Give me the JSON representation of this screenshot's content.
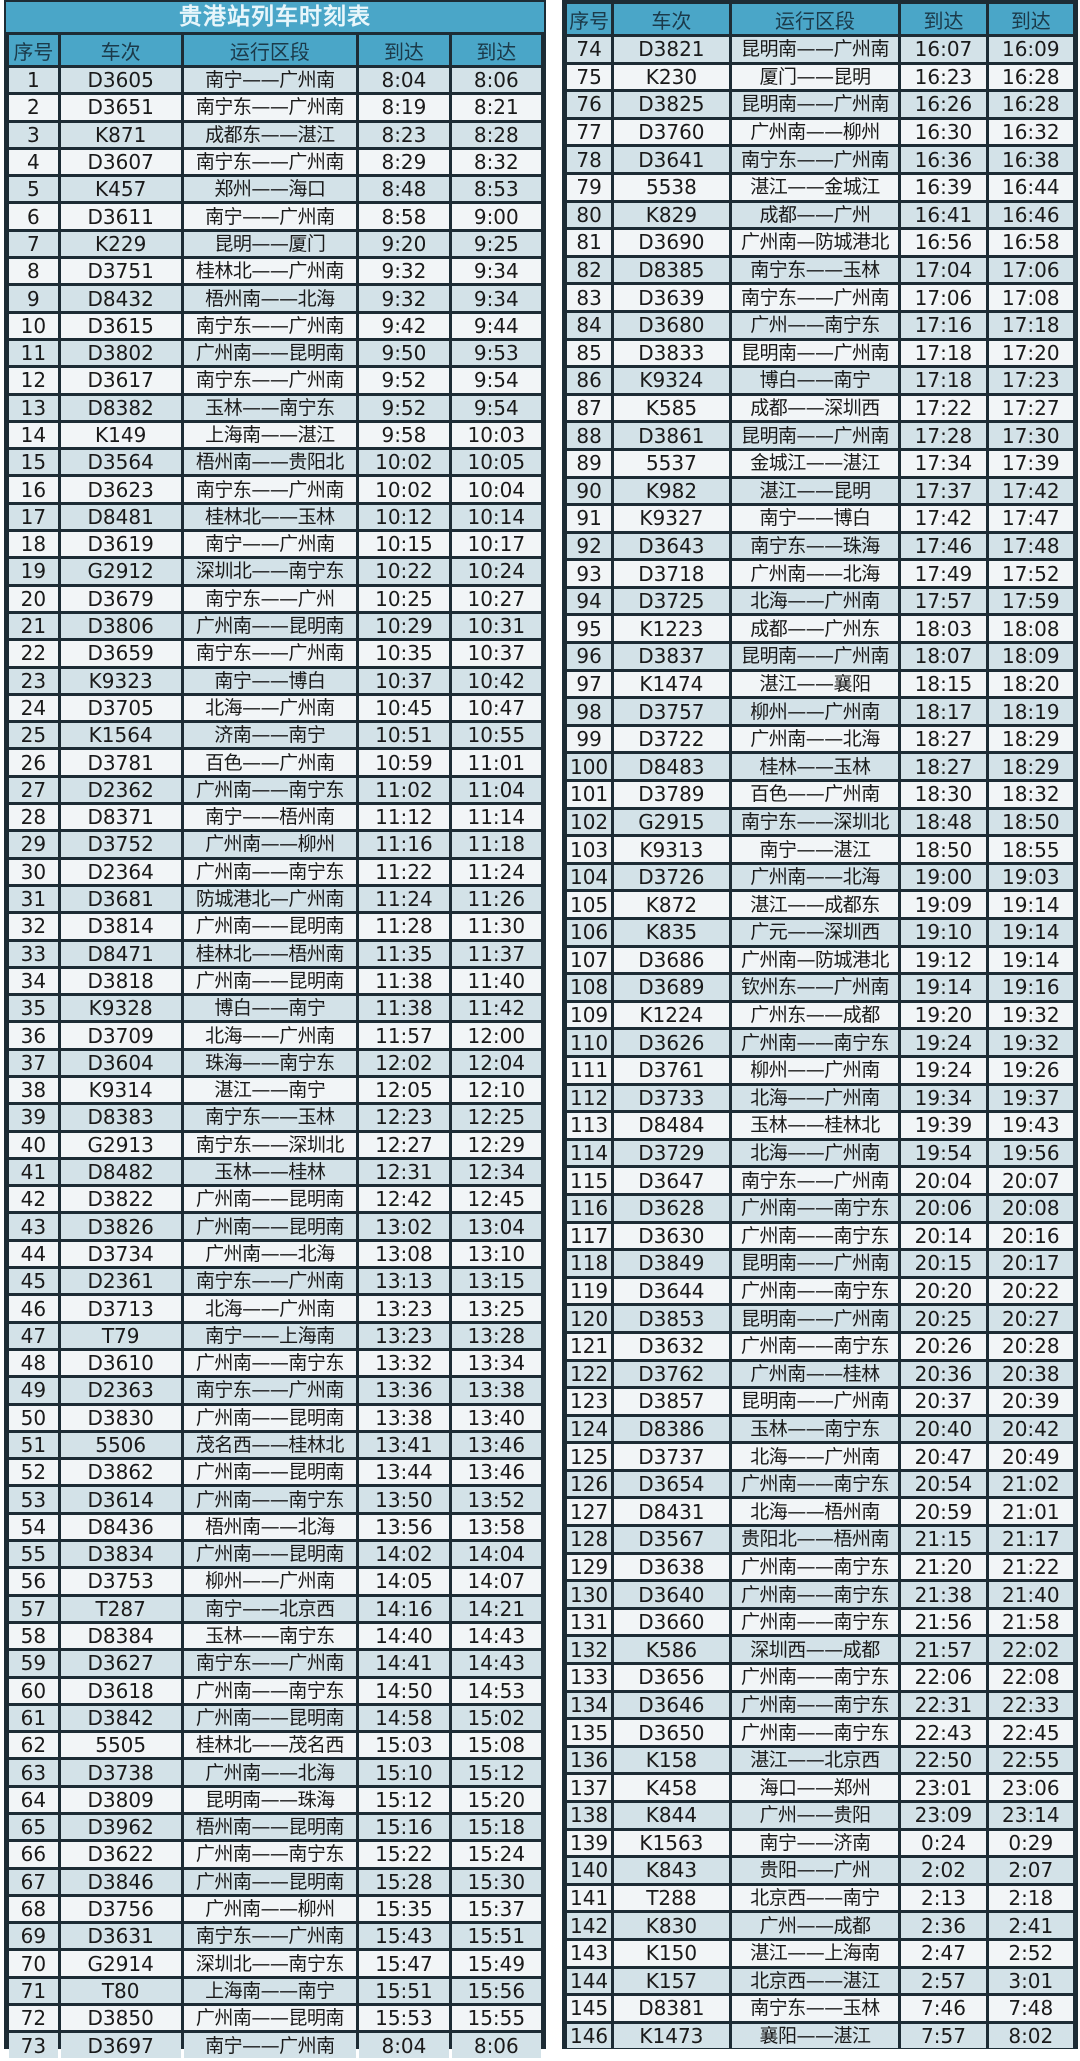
{
  "title": "贵港站列车时刻表",
  "headers": [
    "序号",
    "车次",
    "运行区段",
    "到达",
    "到达"
  ],
  "colors": {
    "header_bg": "#4aa6c8",
    "row_odd": "#d3e2e8",
    "row_even": "#f2f5f7",
    "border": "#1d2c35"
  },
  "left_rows": [
    [
      "1",
      "D3605",
      "南宁——广州南",
      "8:04",
      "8:06"
    ],
    [
      "2",
      "D3651",
      "南宁东——广州南",
      "8:19",
      "8:21"
    ],
    [
      "3",
      "K871",
      "成都东——湛江",
      "8:23",
      "8:28"
    ],
    [
      "4",
      "D3607",
      "南宁东——广州南",
      "8:29",
      "8:32"
    ],
    [
      "5",
      "K457",
      "郑州——海口",
      "8:48",
      "8:53"
    ],
    [
      "6",
      "D3611",
      "南宁——广州南",
      "8:58",
      "9:00"
    ],
    [
      "7",
      "K229",
      "昆明——厦门",
      "9:20",
      "9:25"
    ],
    [
      "8",
      "D3751",
      "桂林北——广州南",
      "9:32",
      "9:34"
    ],
    [
      "9",
      "D8432",
      "梧州南——北海",
      "9:32",
      "9:34"
    ],
    [
      "10",
      "D3615",
      "南宁东——广州南",
      "9:42",
      "9:44"
    ],
    [
      "11",
      "D3802",
      "广州南——昆明南",
      "9:50",
      "9:53"
    ],
    [
      "12",
      "D3617",
      "南宁东——广州南",
      "9:52",
      "9:54"
    ],
    [
      "13",
      "D8382",
      "玉林——南宁东",
      "9:52",
      "9:54"
    ],
    [
      "14",
      "K149",
      "上海南——湛江",
      "9:58",
      "10:03"
    ],
    [
      "15",
      "D3564",
      "梧州南——贵阳北",
      "10:02",
      "10:05"
    ],
    [
      "16",
      "D3623",
      "南宁东——广州南",
      "10:02",
      "10:04"
    ],
    [
      "17",
      "D8481",
      "桂林北——玉林",
      "10:12",
      "10:14"
    ],
    [
      "18",
      "D3619",
      "南宁——广州南",
      "10:15",
      "10:17"
    ],
    [
      "19",
      "G2912",
      "深圳北——南宁东",
      "10:22",
      "10:24"
    ],
    [
      "20",
      "D3679",
      "南宁东——广州",
      "10:25",
      "10:27"
    ],
    [
      "21",
      "D3806",
      "广州南——昆明南",
      "10:29",
      "10:31"
    ],
    [
      "22",
      "D3659",
      "南宁东——广州南",
      "10:35",
      "10:37"
    ],
    [
      "23",
      "K9323",
      "南宁——博白",
      "10:37",
      "10:42"
    ],
    [
      "24",
      "D3705",
      "北海——广州南",
      "10:45",
      "10:47"
    ],
    [
      "25",
      "K1564",
      "济南——南宁",
      "10:51",
      "10:55"
    ],
    [
      "26",
      "D3781",
      "百色——广州南",
      "10:59",
      "11:01"
    ],
    [
      "27",
      "D2362",
      "广州南——南宁东",
      "11:02",
      "11:04"
    ],
    [
      "28",
      "D8371",
      "南宁——梧州南",
      "11:12",
      "11:14"
    ],
    [
      "29",
      "D3752",
      "广州南——柳州",
      "11:16",
      "11:18"
    ],
    [
      "30",
      "D2364",
      "广州南——南宁东",
      "11:22",
      "11:24"
    ],
    [
      "31",
      "D3681",
      "防城港北—广州南",
      "11:24",
      "11:26"
    ],
    [
      "32",
      "D3814",
      "广州南——昆明南",
      "11:28",
      "11:30"
    ],
    [
      "33",
      "D8471",
      "桂林北——梧州南",
      "11:35",
      "11:37"
    ],
    [
      "34",
      "D3818",
      "广州南——昆明南",
      "11:38",
      "11:40"
    ],
    [
      "35",
      "K9328",
      "博白——南宁",
      "11:38",
      "11:42"
    ],
    [
      "36",
      "D3709",
      "北海——广州南",
      "11:57",
      "12:00"
    ],
    [
      "37",
      "D3604",
      "珠海——南宁东",
      "12:02",
      "12:04"
    ],
    [
      "38",
      "K9314",
      "湛江——南宁",
      "12:05",
      "12:10"
    ],
    [
      "39",
      "D8383",
      "南宁东——玉林",
      "12:23",
      "12:25"
    ],
    [
      "40",
      "G2913",
      "南宁东——深圳北",
      "12:27",
      "12:29"
    ],
    [
      "41",
      "D8482",
      "玉林——桂林",
      "12:31",
      "12:34"
    ],
    [
      "42",
      "D3822",
      "广州南——昆明南",
      "12:42",
      "12:45"
    ],
    [
      "43",
      "D3826",
      "广州南——昆明南",
      "13:02",
      "13:04"
    ],
    [
      "44",
      "D3734",
      "广州南——北海",
      "13:08",
      "13:10"
    ],
    [
      "45",
      "D2361",
      "南宁东——广州南",
      "13:13",
      "13:15"
    ],
    [
      "46",
      "D3713",
      "北海——广州南",
      "13:23",
      "13:25"
    ],
    [
      "47",
      "T79",
      "南宁——上海南",
      "13:23",
      "13:28"
    ],
    [
      "48",
      "D3610",
      "广州南——南宁东",
      "13:32",
      "13:34"
    ],
    [
      "49",
      "D2363",
      "南宁东——广州南",
      "13:36",
      "13:38"
    ],
    [
      "50",
      "D3830",
      "广州南——昆明南",
      "13:38",
      "13:40"
    ],
    [
      "51",
      "5506",
      "茂名西——桂林北",
      "13:41",
      "13:46"
    ],
    [
      "52",
      "D3862",
      "广州南——昆明南",
      "13:44",
      "13:46"
    ],
    [
      "53",
      "D3614",
      "广州南——南宁东",
      "13:50",
      "13:52"
    ],
    [
      "54",
      "D8436",
      "梧州南——北海",
      "13:56",
      "13:58"
    ],
    [
      "55",
      "D3834",
      "广州南——昆明南",
      "14:02",
      "14:04"
    ],
    [
      "56",
      "D3753",
      "柳州——广州南",
      "14:05",
      "14:07"
    ],
    [
      "57",
      "T287",
      "南宁——北京西",
      "14:16",
      "14:21"
    ],
    [
      "58",
      "D8384",
      "玉林——南宁东",
      "14:40",
      "14:43"
    ],
    [
      "59",
      "D3627",
      "南宁东——广州南",
      "14:41",
      "14:43"
    ],
    [
      "60",
      "D3618",
      "广州南——南宁东",
      "14:50",
      "14:53"
    ],
    [
      "61",
      "D3842",
      "广州南——昆明南",
      "14:58",
      "15:02"
    ],
    [
      "62",
      "5505",
      "桂林北——茂名西",
      "15:03",
      "15:08"
    ],
    [
      "63",
      "D3738",
      "广州南——北海",
      "15:10",
      "15:12"
    ],
    [
      "64",
      "D3809",
      "昆明南——珠海",
      "15:12",
      "15:20"
    ],
    [
      "65",
      "D3962",
      "梧州南——昆明南",
      "15:16",
      "15:18"
    ],
    [
      "66",
      "D3622",
      "广州南——南宁东",
      "15:22",
      "15:24"
    ],
    [
      "67",
      "D3846",
      "广州南——昆明南",
      "15:28",
      "15:30"
    ],
    [
      "68",
      "D3756",
      "广州南——柳州",
      "15:35",
      "15:37"
    ],
    [
      "69",
      "D3631",
      "南宁东——广州南",
      "15:43",
      "15:51"
    ],
    [
      "70",
      "G2914",
      "深圳北——南宁东",
      "15:47",
      "15:49"
    ],
    [
      "71",
      "T80",
      "上海南——南宁",
      "15:51",
      "15:56"
    ],
    [
      "72",
      "D3850",
      "广州南——昆明南",
      "15:53",
      "15:55"
    ],
    [
      "73",
      "D3697",
      "南宁——广州南",
      "8:04",
      "8:06"
    ]
  ],
  "right_rows": [
    [
      "74",
      "D3821",
      "昆明南——广州南",
      "16:07",
      "16:09"
    ],
    [
      "75",
      "K230",
      "厦门——昆明",
      "16:23",
      "16:28"
    ],
    [
      "76",
      "D3825",
      "昆明南——广州南",
      "16:26",
      "16:28"
    ],
    [
      "77",
      "D3760",
      "广州南——柳州",
      "16:30",
      "16:32"
    ],
    [
      "78",
      "D3641",
      "南宁东——广州南",
      "16:36",
      "16:38"
    ],
    [
      "79",
      "5538",
      "湛江——金城江",
      "16:39",
      "16:44"
    ],
    [
      "80",
      "K829",
      "成都——广州",
      "16:41",
      "16:46"
    ],
    [
      "81",
      "D3690",
      "广州南—防城港北",
      "16:56",
      "16:58"
    ],
    [
      "82",
      "D8385",
      "南宁东——玉林",
      "17:04",
      "17:06"
    ],
    [
      "83",
      "D3639",
      "南宁东——广州南",
      "17:06",
      "17:08"
    ],
    [
      "84",
      "D3680",
      "广州——南宁东",
      "17:16",
      "17:18"
    ],
    [
      "85",
      "D3833",
      "昆明南——广州南",
      "17:18",
      "17:20"
    ],
    [
      "86",
      "K9324",
      "博白——南宁",
      "17:18",
      "17:23"
    ],
    [
      "87",
      "K585",
      "成都——深圳西",
      "17:22",
      "17:27"
    ],
    [
      "88",
      "D3861",
      "昆明南——广州南",
      "17:28",
      "17:30"
    ],
    [
      "89",
      "5537",
      "金城江——湛江",
      "17:34",
      "17:39"
    ],
    [
      "90",
      "K982",
      "湛江——昆明",
      "17:37",
      "17:42"
    ],
    [
      "91",
      "K9327",
      "南宁——博白",
      "17:42",
      "17:47"
    ],
    [
      "92",
      "D3643",
      "南宁东——珠海",
      "17:46",
      "17:48"
    ],
    [
      "93",
      "D3718",
      "广州南——北海",
      "17:49",
      "17:52"
    ],
    [
      "94",
      "D3725",
      "北海——广州南",
      "17:57",
      "17:59"
    ],
    [
      "95",
      "K1223",
      "成都——广州东",
      "18:03",
      "18:08"
    ],
    [
      "96",
      "D3837",
      "昆明南——广州南",
      "18:07",
      "18:09"
    ],
    [
      "97",
      "K1474",
      "湛江——襄阳",
      "18:15",
      "18:20"
    ],
    [
      "98",
      "D3757",
      "柳州——广州南",
      "18:17",
      "18:19"
    ],
    [
      "99",
      "D3722",
      "广州南——北海",
      "18:27",
      "18:29"
    ],
    [
      "100",
      "D8483",
      "桂林——玉林",
      "18:27",
      "18:29"
    ],
    [
      "101",
      "D3789",
      "百色——广州南",
      "18:30",
      "18:32"
    ],
    [
      "102",
      "G2915",
      "南宁东——深圳北",
      "18:48",
      "18:50"
    ],
    [
      "103",
      "K9313",
      "南宁——湛江",
      "18:50",
      "18:55"
    ],
    [
      "104",
      "D3726",
      "广州南——北海",
      "19:00",
      "19:03"
    ],
    [
      "105",
      "K872",
      "湛江——成都东",
      "19:09",
      "19:14"
    ],
    [
      "106",
      "K835",
      "广元——深圳西",
      "19:10",
      "19:14"
    ],
    [
      "107",
      "D3686",
      "广州南—防城港北",
      "19:12",
      "19:14"
    ],
    [
      "108",
      "D3689",
      "钦州东——广州南",
      "19:14",
      "19:16"
    ],
    [
      "109",
      "K1224",
      "广州东——成都",
      "19:20",
      "19:32"
    ],
    [
      "110",
      "D3626",
      "广州南——南宁东",
      "19:24",
      "19:32"
    ],
    [
      "111",
      "D3761",
      "柳州——广州南",
      "19:24",
      "19:26"
    ],
    [
      "112",
      "D3733",
      "北海——广州南",
      "19:34",
      "19:37"
    ],
    [
      "113",
      "D8484",
      "玉林——桂林北",
      "19:39",
      "19:43"
    ],
    [
      "114",
      "D3729",
      "北海——广州南",
      "19:54",
      "19:56"
    ],
    [
      "115",
      "D3647",
      "南宁东——广州南",
      "20:04",
      "20:07"
    ],
    [
      "116",
      "D3628",
      "广州南——南宁东",
      "20:06",
      "20:08"
    ],
    [
      "117",
      "D3630",
      "广州南——南宁东",
      "20:14",
      "20:16"
    ],
    [
      "118",
      "D3849",
      "昆明南——广州南",
      "20:15",
      "20:17"
    ],
    [
      "119",
      "D3644",
      "广州南——南宁东",
      "20:20",
      "20:22"
    ],
    [
      "120",
      "D3853",
      "昆明南——广州南",
      "20:25",
      "20:27"
    ],
    [
      "121",
      "D3632",
      "广州南——南宁东",
      "20:26",
      "20:28"
    ],
    [
      "122",
      "D3762",
      "广州南——桂林",
      "20:36",
      "20:38"
    ],
    [
      "123",
      "D3857",
      "昆明南——广州南",
      "20:37",
      "20:39"
    ],
    [
      "124",
      "D8386",
      "玉林——南宁东",
      "20:40",
      "20:42"
    ],
    [
      "125",
      "D3737",
      "北海——广州南",
      "20:47",
      "20:49"
    ],
    [
      "126",
      "D3654",
      "广州南——南宁东",
      "20:54",
      "21:02"
    ],
    [
      "127",
      "D8431",
      "北海——梧州南",
      "20:59",
      "21:01"
    ],
    [
      "128",
      "D3567",
      "贵阳北——梧州南",
      "21:15",
      "21:17"
    ],
    [
      "129",
      "D3638",
      "广州南——南宁东",
      "21:20",
      "21:22"
    ],
    [
      "130",
      "D3640",
      "广州南——南宁东",
      "21:38",
      "21:40"
    ],
    [
      "131",
      "D3660",
      "广州南——南宁东",
      "21:56",
      "21:58"
    ],
    [
      "132",
      "K586",
      "深圳西——成都",
      "21:57",
      "22:02"
    ],
    [
      "133",
      "D3656",
      "广州南——南宁东",
      "22:06",
      "22:08"
    ],
    [
      "134",
      "D3646",
      "广州南——南宁东",
      "22:31",
      "22:33"
    ],
    [
      "135",
      "D3650",
      "广州南——南宁东",
      "22:43",
      "22:45"
    ],
    [
      "136",
      "K158",
      "湛江——北京西",
      "22:50",
      "22:55"
    ],
    [
      "137",
      "K458",
      "海口——郑州",
      "23:01",
      "23:06"
    ],
    [
      "138",
      "K844",
      "广州——贵阳",
      "23:09",
      "23:14"
    ],
    [
      "139",
      "K1563",
      "南宁——济南",
      "0:24",
      "0:29"
    ],
    [
      "140",
      "K843",
      "贵阳——广州",
      "2:02",
      "2:07"
    ],
    [
      "141",
      "T288",
      "北京西——南宁",
      "2:13",
      "2:18"
    ],
    [
      "142",
      "K830",
      "广州——成都",
      "2:36",
      "2:41"
    ],
    [
      "143",
      "K150",
      "湛江——上海南",
      "2:47",
      "2:52"
    ],
    [
      "144",
      "K157",
      "北京西——湛江",
      "2:57",
      "3:01"
    ],
    [
      "145",
      "D8381",
      "南宁东——玉林",
      "7:46",
      "7:48"
    ],
    [
      "146",
      "K1473",
      "襄阳——湛江",
      "7:57",
      "8:02"
    ]
  ]
}
